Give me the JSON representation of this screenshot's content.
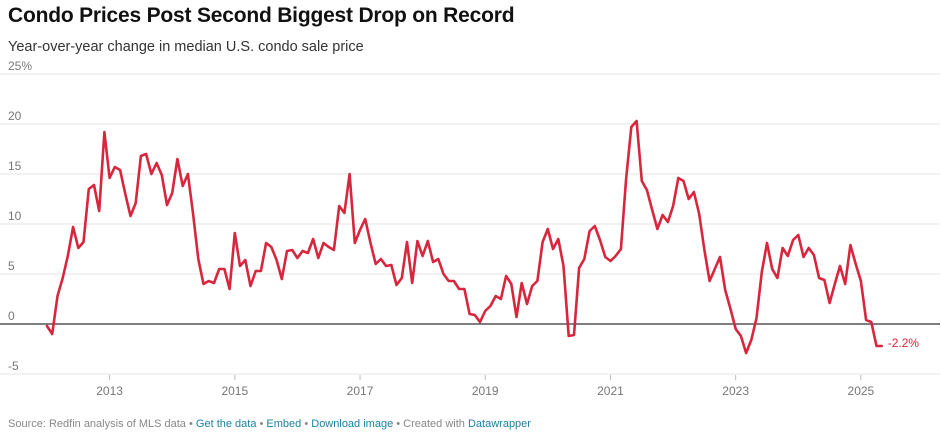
{
  "header": {
    "title": "Condo Prices Post Second Biggest Drop on Record",
    "subtitle": "Year-over-year change in median U.S. condo sale price"
  },
  "footer": {
    "source": "Source: Redfin analysis of MLS data",
    "sep": " • ",
    "get_data": "Get the data",
    "embed": "Embed",
    "download": "Download image",
    "created_with": "Created with",
    "datawrapper": "Datawrapper"
  },
  "colors": {
    "line": "#d7263d",
    "grid": "#e6e6e6",
    "zero": "#333333",
    "link": "#1d81a2"
  },
  "chart_data": {
    "type": "line",
    "title": "Condo Prices Post Second Biggest Drop on Record",
    "subtitle": "Year-over-year change in median U.S. condo sale price",
    "xlabel": "",
    "ylabel": "",
    "ylim": [
      -5,
      25
    ],
    "xlim": [
      2012.0,
      2026.2
    ],
    "yticks": [
      -5,
      0,
      5,
      10,
      15,
      20,
      25
    ],
    "ytick_labels": [
      "-5",
      "0",
      "5",
      "10",
      "15",
      "20",
      "25%"
    ],
    "xticks": [
      2013,
      2015,
      2017,
      2019,
      2021,
      2023,
      2025
    ],
    "xtick_labels": [
      "2013",
      "2015",
      "2017",
      "2019",
      "2021",
      "2023",
      "2025"
    ],
    "grid": true,
    "end_label": "-2.2%",
    "series": [
      {
        "name": "",
        "x": [
          2012.0,
          2012.083,
          2012.167,
          2012.25,
          2012.333,
          2012.417,
          2012.5,
          2012.583,
          2012.667,
          2012.75,
          2012.833,
          2012.917,
          2013.0,
          2013.083,
          2013.167,
          2013.25,
          2013.333,
          2013.417,
          2013.5,
          2013.583,
          2013.667,
          2013.75,
          2013.833,
          2013.917,
          2014.0,
          2014.083,
          2014.167,
          2014.25,
          2014.333,
          2014.417,
          2014.5,
          2014.583,
          2014.667,
          2014.75,
          2014.833,
          2014.917,
          2015.0,
          2015.083,
          2015.167,
          2015.25,
          2015.333,
          2015.417,
          2015.5,
          2015.583,
          2015.667,
          2015.75,
          2015.833,
          2015.917,
          2016.0,
          2016.083,
          2016.167,
          2016.25,
          2016.333,
          2016.417,
          2016.5,
          2016.583,
          2016.667,
          2016.75,
          2016.833,
          2016.917,
          2017.0,
          2017.083,
          2017.167,
          2017.25,
          2017.333,
          2017.417,
          2017.5,
          2017.583,
          2017.667,
          2017.75,
          2017.833,
          2017.917,
          2018.0,
          2018.083,
          2018.167,
          2018.25,
          2018.333,
          2018.417,
          2018.5,
          2018.583,
          2018.667,
          2018.75,
          2018.833,
          2018.917,
          2019.0,
          2019.083,
          2019.167,
          2019.25,
          2019.333,
          2019.417,
          2019.5,
          2019.583,
          2019.667,
          2019.75,
          2019.833,
          2019.917,
          2020.0,
          2020.083,
          2020.167,
          2020.25,
          2020.333,
          2020.417,
          2020.5,
          2020.583,
          2020.667,
          2020.75,
          2020.833,
          2020.917,
          2021.0,
          2021.083,
          2021.167,
          2021.25,
          2021.333,
          2021.417,
          2021.5,
          2021.583,
          2021.667,
          2021.75,
          2021.833,
          2021.917,
          2022.0,
          2022.083,
          2022.167,
          2022.25,
          2022.333,
          2022.417,
          2022.5,
          2022.583,
          2022.667,
          2022.75,
          2022.833,
          2022.917,
          2023.0,
          2023.083,
          2023.167,
          2023.25,
          2023.333,
          2023.417,
          2023.5,
          2023.583,
          2023.667,
          2023.75,
          2023.833,
          2023.917,
          2024.0,
          2024.083,
          2024.167,
          2024.25,
          2024.333,
          2024.417,
          2024.5,
          2024.583,
          2024.667,
          2024.75,
          2024.833,
          2024.917,
          2025.0,
          2025.083,
          2025.167,
          2025.25,
          2025.333
        ],
        "y": [
          -0.2,
          -1.0,
          2.8,
          4.6,
          6.8,
          9.7,
          7.6,
          8.2,
          13.5,
          13.9,
          11.3,
          19.2,
          14.6,
          15.7,
          15.4,
          13.0,
          10.8,
          12.1,
          16.8,
          17.0,
          15.0,
          16.1,
          14.9,
          11.9,
          13.1,
          16.5,
          13.8,
          15.0,
          11.0,
          6.5,
          4.0,
          4.3,
          4.1,
          5.5,
          5.5,
          3.5,
          9.1,
          5.8,
          6.4,
          3.8,
          5.3,
          5.3,
          8.1,
          7.7,
          6.4,
          4.5,
          7.3,
          7.4,
          6.6,
          7.3,
          7.1,
          8.5,
          6.6,
          8.1,
          7.7,
          7.4,
          11.8,
          11.1,
          15.0,
          8.1,
          9.4,
          10.5,
          8.1,
          6.0,
          6.5,
          5.8,
          5.9,
          3.9,
          4.6,
          8.2,
          4.1,
          8.3,
          6.8,
          8.3,
          6.2,
          6.5,
          5.0,
          4.3,
          4.3,
          3.5,
          3.5,
          1.0,
          0.9,
          0.2,
          1.3,
          1.8,
          2.8,
          2.5,
          4.8,
          4.0,
          0.7,
          4.1,
          2.0,
          3.8,
          4.3,
          8.2,
          9.5,
          7.5,
          8.5,
          5.8,
          -1.2,
          -1.1,
          5.6,
          6.5,
          9.3,
          9.8,
          8.4,
          6.7,
          6.3,
          6.8,
          7.5,
          14.5,
          19.7,
          20.3,
          14.3,
          13.4,
          11.4,
          9.5,
          10.9,
          10.2,
          11.8,
          14.6,
          14.3,
          12.5,
          13.2,
          11.0,
          7.4,
          4.3,
          5.5,
          6.7,
          3.4,
          1.5,
          -0.5,
          -1.2,
          -2.9,
          -1.6,
          0.6,
          5.2,
          8.1,
          5.5,
          4.6,
          7.6,
          6.8,
          8.4,
          8.9,
          6.7,
          7.6,
          6.9,
          4.6,
          4.4,
          2.1,
          4.0,
          5.8,
          4.0,
          7.9,
          6.0,
          4.3,
          0.4,
          0.2,
          -2.2,
          -2.2
        ]
      }
    ]
  }
}
